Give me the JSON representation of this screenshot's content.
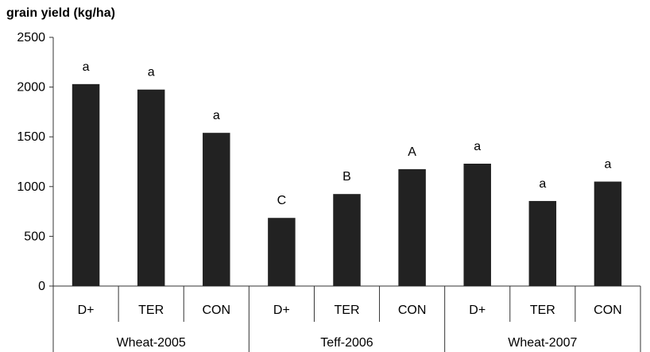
{
  "chart_data": {
    "type": "bar",
    "title": "grain yield (kg/ha)",
    "ylim": [
      0,
      2500
    ],
    "yticks": [
      "0",
      "500",
      "1000",
      "1500",
      "2000",
      "2500"
    ],
    "grid": false,
    "legend": "none",
    "bar_color": "#222222",
    "groups": [
      {
        "name": "Wheat-2005",
        "bars": [
          {
            "category": "D+",
            "value": 2030,
            "letter": "a"
          },
          {
            "category": "TER",
            "value": 1975,
            "letter": "a"
          },
          {
            "category": "CON",
            "value": 1540,
            "letter": "a"
          }
        ]
      },
      {
        "name": "Teff-2006",
        "bars": [
          {
            "category": "D+",
            "value": 685,
            "letter": "C"
          },
          {
            "category": "TER",
            "value": 925,
            "letter": "B"
          },
          {
            "category": "CON",
            "value": 1175,
            "letter": "A"
          }
        ]
      },
      {
        "name": "Wheat-2007",
        "bars": [
          {
            "category": "D+",
            "value": 1230,
            "letter": "a"
          },
          {
            "category": "TER",
            "value": 855,
            "letter": "a"
          },
          {
            "category": "CON",
            "value": 1050,
            "letter": "a"
          }
        ]
      }
    ]
  }
}
